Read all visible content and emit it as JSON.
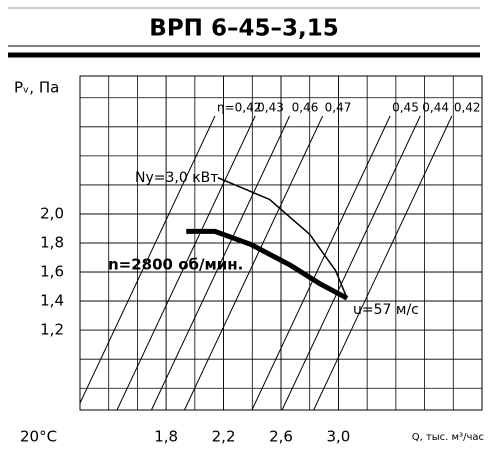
{
  "chart_data": {
    "type": "fan",
    "title": "ВРП 6–45–3,15",
    "y_label": "Pᵥ, Па",
    "x_label": "Q, тыс. м³/час",
    "temperature": "20°C",
    "xlim": [
      1.2,
      4.0
    ],
    "ylim": [
      0.65,
      2.95
    ],
    "xticks": [
      {
        "value": 1.8,
        "label": "1,8"
      },
      {
        "value": 2.2,
        "label": "2,2"
      },
      {
        "value": 2.6,
        "label": "2,6"
      },
      {
        "value": 3.0,
        "label": "3,0"
      }
    ],
    "yticks": [
      {
        "value": 1.2,
        "label": "1,2"
      },
      {
        "value": 1.4,
        "label": "1,4"
      },
      {
        "value": 1.6,
        "label": "1,6"
      },
      {
        "value": 1.8,
        "label": "1,8"
      },
      {
        "value": 2.0,
        "label": "2,0"
      }
    ],
    "grid": true,
    "series": [
      {
        "name": "n=2800 об/мин.",
        "color": "#000000",
        "x": [
          1.94,
          2.14,
          2.39,
          2.66,
          2.87,
          3.06
        ],
        "values": [
          1.88,
          1.88,
          1.79,
          1.65,
          1.52,
          1.42
        ]
      },
      {
        "name": "Nу=3,0 кВт",
        "color": "#000000",
        "x": [
          2.16,
          2.52,
          2.8,
          2.98,
          3.06
        ],
        "values": [
          2.25,
          2.1,
          1.86,
          1.61,
          1.42
        ]
      }
    ],
    "efficiency": {
      "labels": [
        "η=0,42",
        "0,43",
        "0,46",
        "0,47",
        "0,45",
        "0,44",
        "0,42"
      ],
      "q": [
        2.14,
        2.42,
        2.66,
        2.89,
        3.36,
        3.57,
        3.79
      ]
    },
    "velocity_label": "u=57 м/с"
  }
}
